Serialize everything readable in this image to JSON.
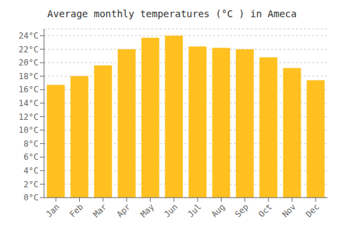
{
  "chart_data": {
    "type": "bar",
    "title": "Average monthly temperatures (°C ) in Ameca",
    "categories": [
      "Jan",
      "Feb",
      "Mar",
      "Apr",
      "May",
      "Jun",
      "Jul",
      "Aug",
      "Sep",
      "Oct",
      "Nov",
      "Dec"
    ],
    "values": [
      16.7,
      18.0,
      19.6,
      22.0,
      23.7,
      24.0,
      22.4,
      22.2,
      22.0,
      20.8,
      19.2,
      17.4
    ],
    "color": "#FFC020",
    "ylim": [
      0,
      25
    ],
    "yticks": [
      {
        "value": 0,
        "label": "0°C"
      },
      {
        "value": 2,
        "label": "2°C"
      },
      {
        "value": 4,
        "label": "4°C"
      },
      {
        "value": 6,
        "label": "6°C"
      },
      {
        "value": 8,
        "label": "8°C"
      },
      {
        "value": 10,
        "label": "10°C"
      },
      {
        "value": 12,
        "label": "12°C"
      },
      {
        "value": 14,
        "label": "14°C"
      },
      {
        "value": 16,
        "label": "16°C"
      },
      {
        "value": 18,
        "label": "18°C"
      },
      {
        "value": 20,
        "label": "20°C"
      },
      {
        "value": 22,
        "label": "22°C"
      },
      {
        "value": 24,
        "label": "24°C"
      }
    ],
    "grid": true
  }
}
